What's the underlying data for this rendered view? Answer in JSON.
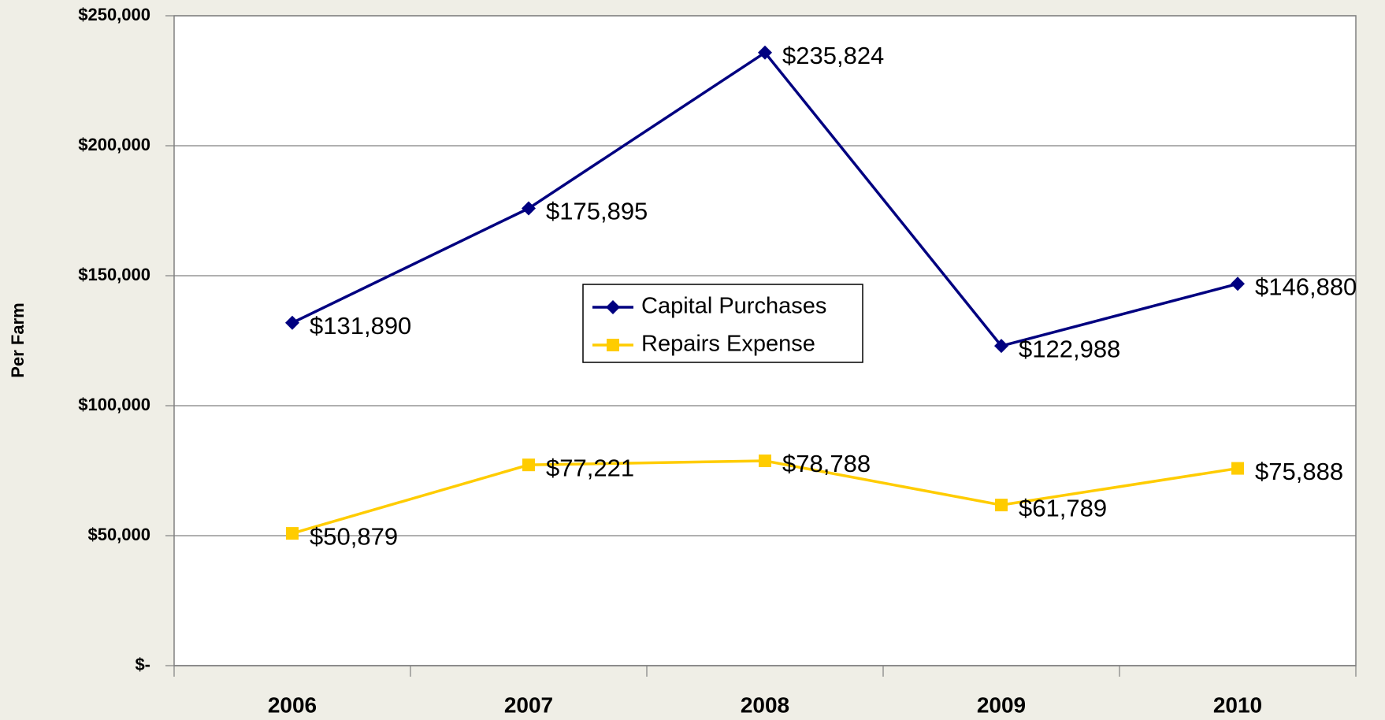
{
  "chart_data": {
    "type": "line",
    "y_label": "Per Farm",
    "categories": [
      "2006",
      "2007",
      "2008",
      "2009",
      "2010"
    ],
    "series": [
      {
        "name": "Capital Purchases",
        "color": "#000080",
        "marker": "diamond",
        "values": [
          131890,
          175895,
          235824,
          122988,
          146880
        ],
        "value_labels": [
          "$131,890",
          "$175,895",
          "$235,824",
          "$122,988",
          "$146,880"
        ]
      },
      {
        "name": "Repairs Expense",
        "color": "#ffcc00",
        "marker": "square",
        "values": [
          50879,
          77221,
          78788,
          61789,
          75888
        ],
        "value_labels": [
          "$50,879",
          "$77,221",
          "$78,788",
          "$61,789",
          "$75,888"
        ]
      }
    ],
    "ylim": [
      0,
      250000
    ],
    "yticks": [
      {
        "value": 0,
        "label": "$-"
      },
      {
        "value": 50000,
        "label": "$50,000"
      },
      {
        "value": 100000,
        "label": "$100,000"
      },
      {
        "value": 150000,
        "label": "$150,000"
      },
      {
        "value": 200000,
        "label": "$200,000"
      },
      {
        "value": 250000,
        "label": "$250,000"
      }
    ],
    "grid": true
  }
}
